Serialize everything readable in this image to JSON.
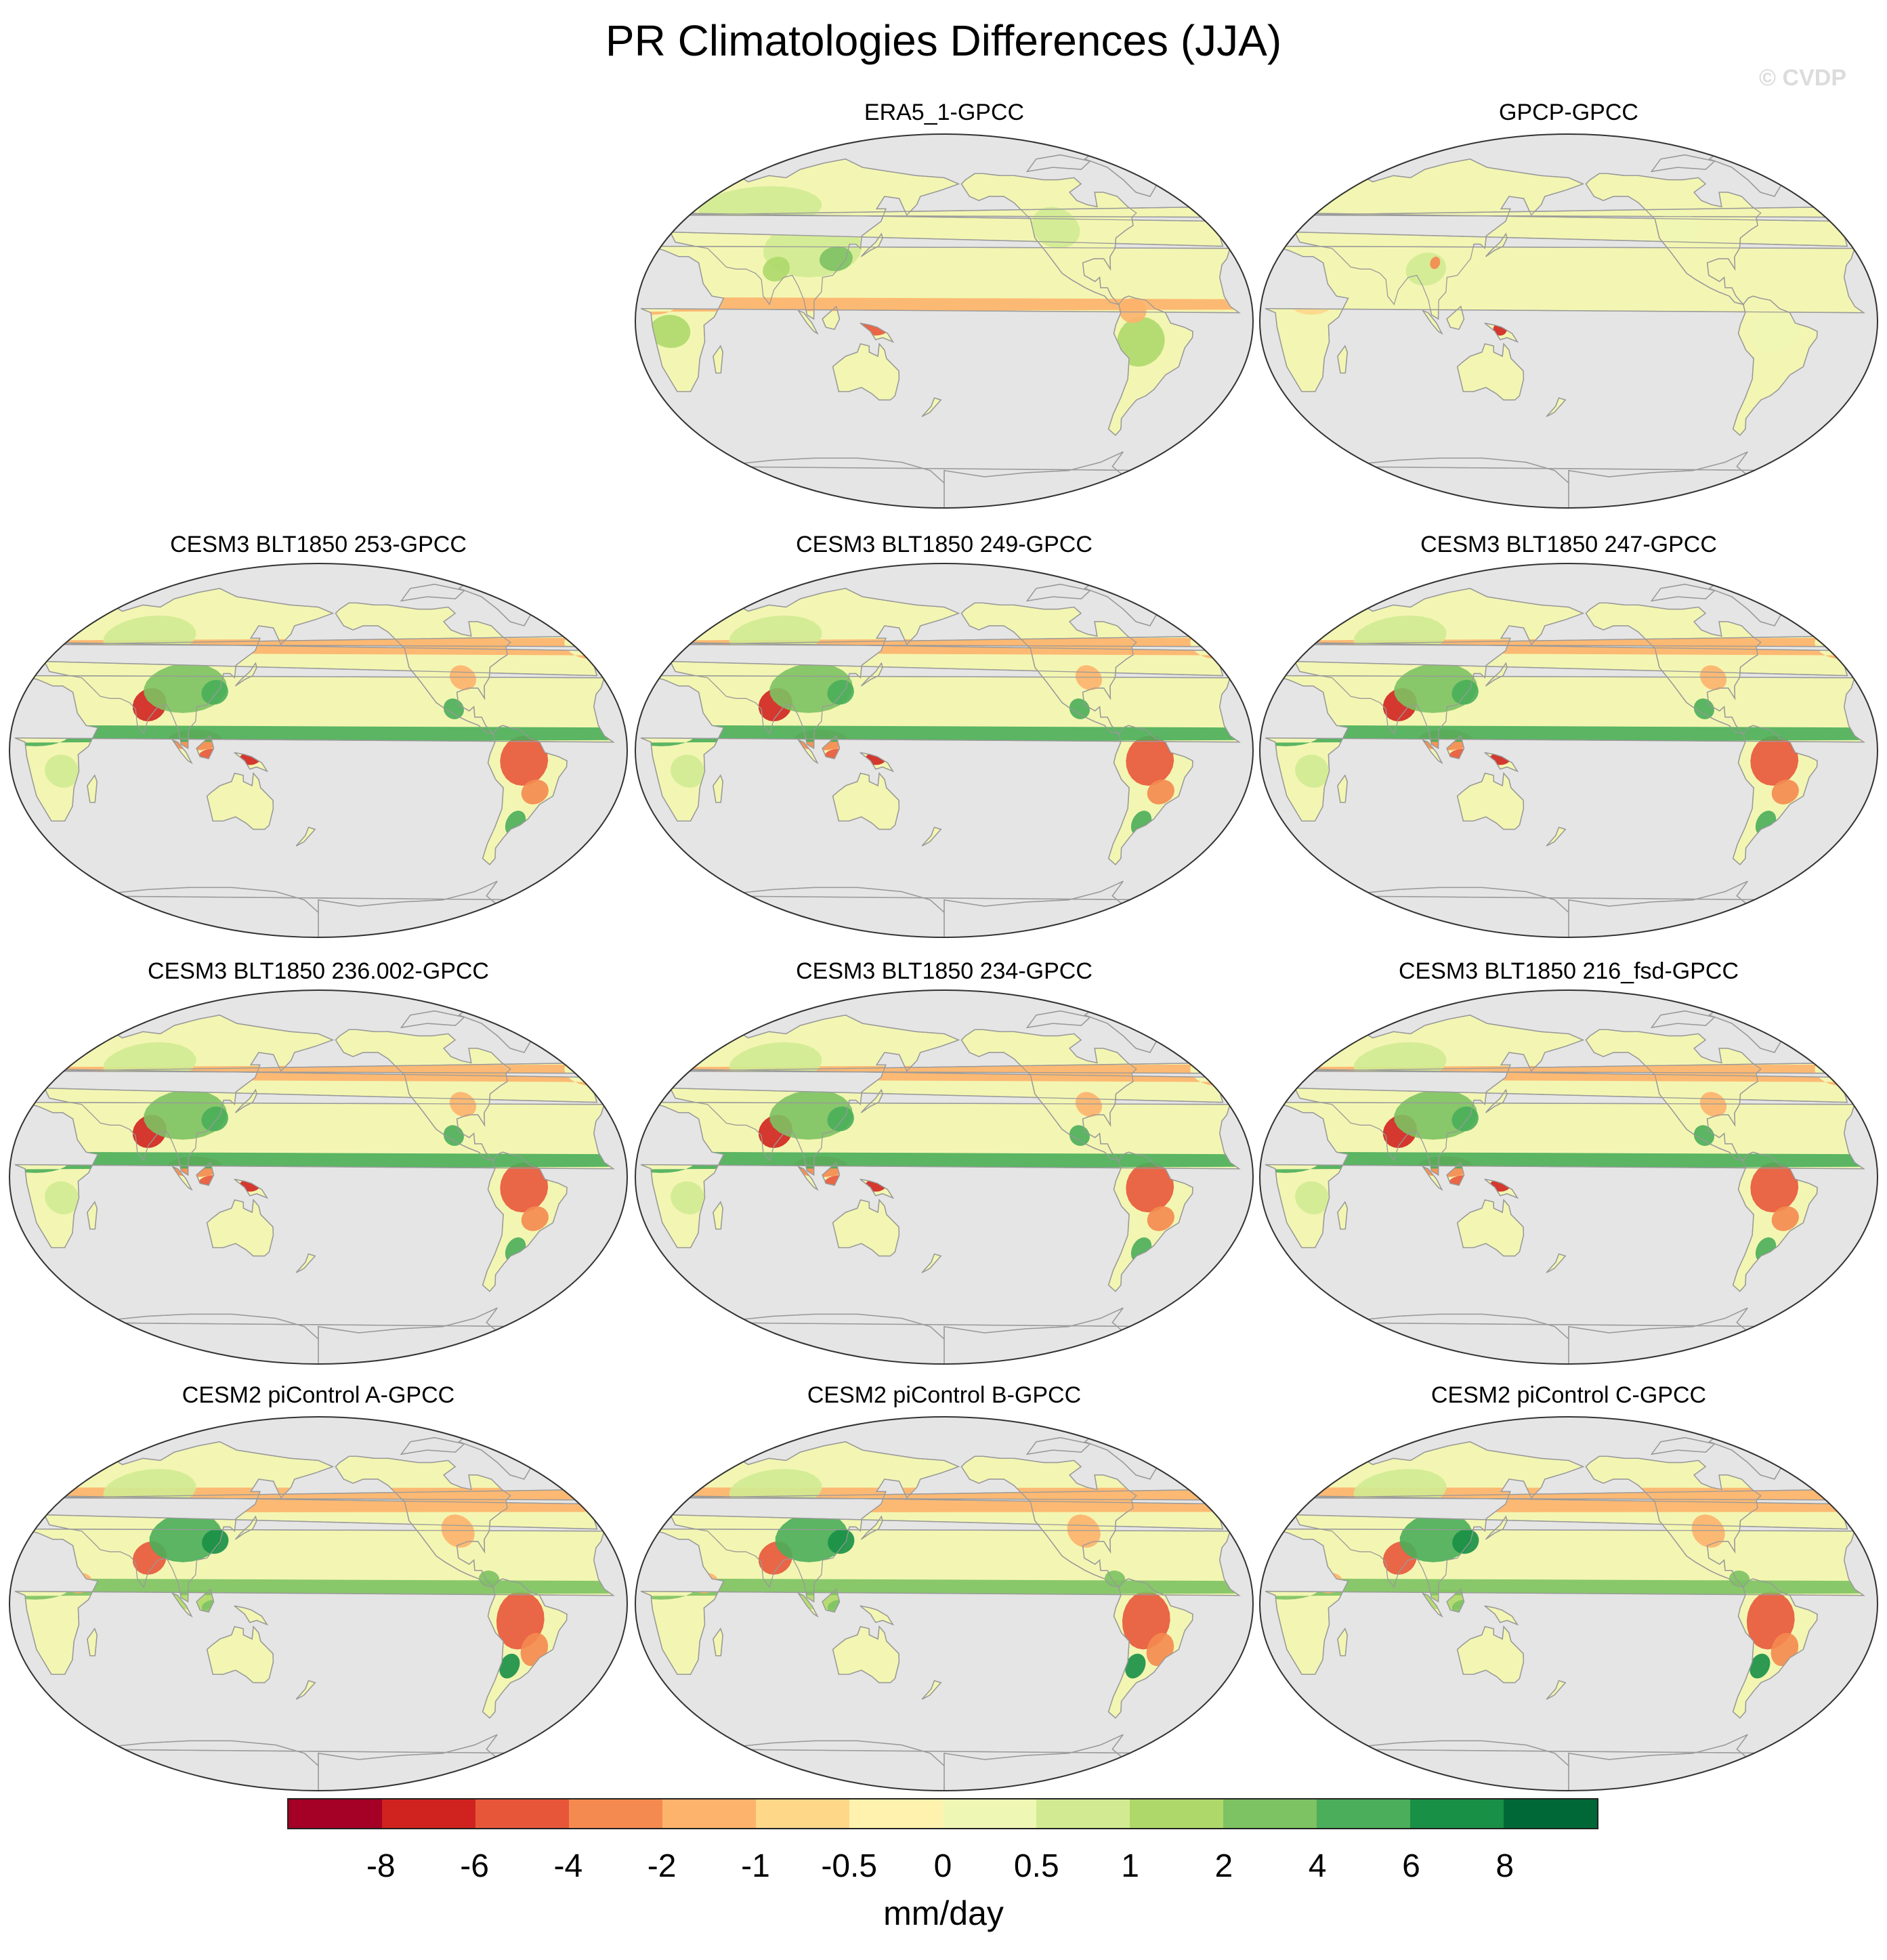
{
  "title": "PR Climatologies Differences (JJA)",
  "watermark": "© CVDP",
  "panels": [
    {
      "title": "ERA5_1-GPCC",
      "pattern": "obs1"
    },
    {
      "title": "GPCP-GPCC",
      "pattern": "obs2"
    },
    {
      "title": "CESM3 BLT1850 253-GPCC",
      "pattern": "model"
    },
    {
      "title": "CESM3 BLT1850 249-GPCC",
      "pattern": "model"
    },
    {
      "title": "CESM3 BLT1850 247-GPCC",
      "pattern": "model"
    },
    {
      "title": "CESM3 BLT1850 236.002-GPCC",
      "pattern": "model"
    },
    {
      "title": "CESM3 BLT1850 234-GPCC",
      "pattern": "model"
    },
    {
      "title": "CESM3 BLT1850 216_fsd-GPCC",
      "pattern": "model"
    },
    {
      "title": "CESM2 piControl A-GPCC",
      "pattern": "cesm2"
    },
    {
      "title": "CESM2 piControl B-GPCC",
      "pattern": "cesm2"
    },
    {
      "title": "CESM2 piControl C-GPCC",
      "pattern": "cesm2"
    }
  ],
  "colorbar": {
    "units": "mm/day",
    "colors": [
      "#a50026",
      "#d0231f",
      "#e8563a",
      "#f48a4f",
      "#fdb36b",
      "#fed789",
      "#fef2ae",
      "#eff7b4",
      "#d2eb92",
      "#aed96a",
      "#7dc263",
      "#4aae5a",
      "#189046",
      "#006837"
    ],
    "labels": [
      "-8",
      "-6",
      "-4",
      "-2",
      "-1",
      "-0.5",
      "0",
      "0.5",
      "1",
      "2",
      "4",
      "6",
      "8"
    ]
  },
  "colors": {
    "ocean": "#e5e5e5",
    "land_neutral": "#f3f6b2",
    "outline": "#9a9a9a"
  }
}
